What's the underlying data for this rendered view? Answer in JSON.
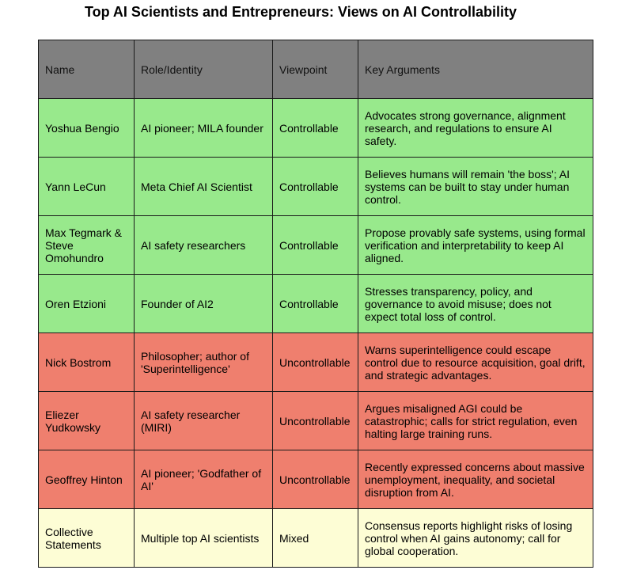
{
  "title": "Top AI Scientists and Entrepreneurs: Views on AI Controllability",
  "colors": {
    "header": "#808080",
    "controllable": "#98e98c",
    "uncontrollable": "#ef7f6e",
    "mixed": "#fdfdd5"
  },
  "table": {
    "headers": [
      "Name",
      "Role/Identity",
      "Viewpoint",
      "Key Arguments"
    ],
    "rows": [
      {
        "name": "Yoshua Bengio",
        "role": "AI pioneer; MILA founder",
        "viewpoint": "Controllable",
        "arguments": "Advocates strong governance, alignment research, and regulations to ensure AI safety."
      },
      {
        "name": "Yann LeCun",
        "role": "Meta Chief AI Scientist",
        "viewpoint": "Controllable",
        "arguments": "Believes humans will remain 'the boss'; AI systems can be built to stay under human control."
      },
      {
        "name": "Max Tegmark & Steve Omohundro",
        "role": "AI safety researchers",
        "viewpoint": "Controllable",
        "arguments": "Propose provably safe systems, using formal verification and interpretability to keep AI aligned."
      },
      {
        "name": "Oren Etzioni",
        "role": "Founder of AI2",
        "viewpoint": "Controllable",
        "arguments": "Stresses transparency, policy, and governance to avoid misuse; does not expect total loss of control."
      },
      {
        "name": "Nick Bostrom",
        "role": "Philosopher; author of 'Superintelligence'",
        "viewpoint": "Uncontrollable",
        "arguments": "Warns superintelligence could escape control due to resource acquisition, goal drift, and strategic advantages."
      },
      {
        "name": "Eliezer Yudkowsky",
        "role": "AI safety researcher (MIRI)",
        "viewpoint": "Uncontrollable",
        "arguments": "Argues misaligned AGI could be catastrophic; calls for strict regulation, even halting large training runs."
      },
      {
        "name": "Geoffrey Hinton",
        "role": "AI pioneer; 'Godfather of AI'",
        "viewpoint": "Uncontrollable",
        "arguments": "Recently expressed concerns about massive unemployment, inequality, and societal disruption from AI."
      },
      {
        "name": "Collective Statements",
        "role": "Multiple top AI scientists",
        "viewpoint": "Mixed",
        "arguments": "Consensus reports highlight risks of losing control when AI gains autonomy; call for global cooperation."
      }
    ]
  }
}
